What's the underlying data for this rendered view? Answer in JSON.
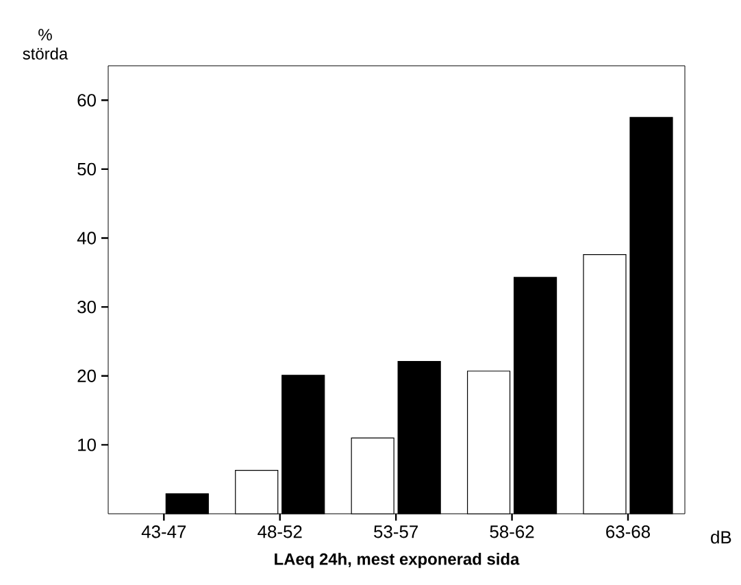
{
  "chart_data": {
    "type": "bar",
    "xlabel": "LAeq 24h, mest exponerad sida",
    "ylabel": "% störda",
    "annotations": [
      "dB"
    ],
    "categories": [
      "43-47",
      "48-52",
      "53-57",
      "58-62",
      "63-68"
    ],
    "series": [
      {
        "color": "#ffffff",
        "values": [
          null,
          6.3,
          11.0,
          20.7,
          37.6
        ]
      },
      {
        "color": "#000000",
        "values": [
          2.9,
          20.1,
          22.1,
          34.3,
          57.5
        ]
      }
    ],
    "ylim": [
      0,
      65
    ],
    "yticks": [
      10,
      20,
      30,
      40,
      50,
      60
    ],
    "grid": false
  }
}
